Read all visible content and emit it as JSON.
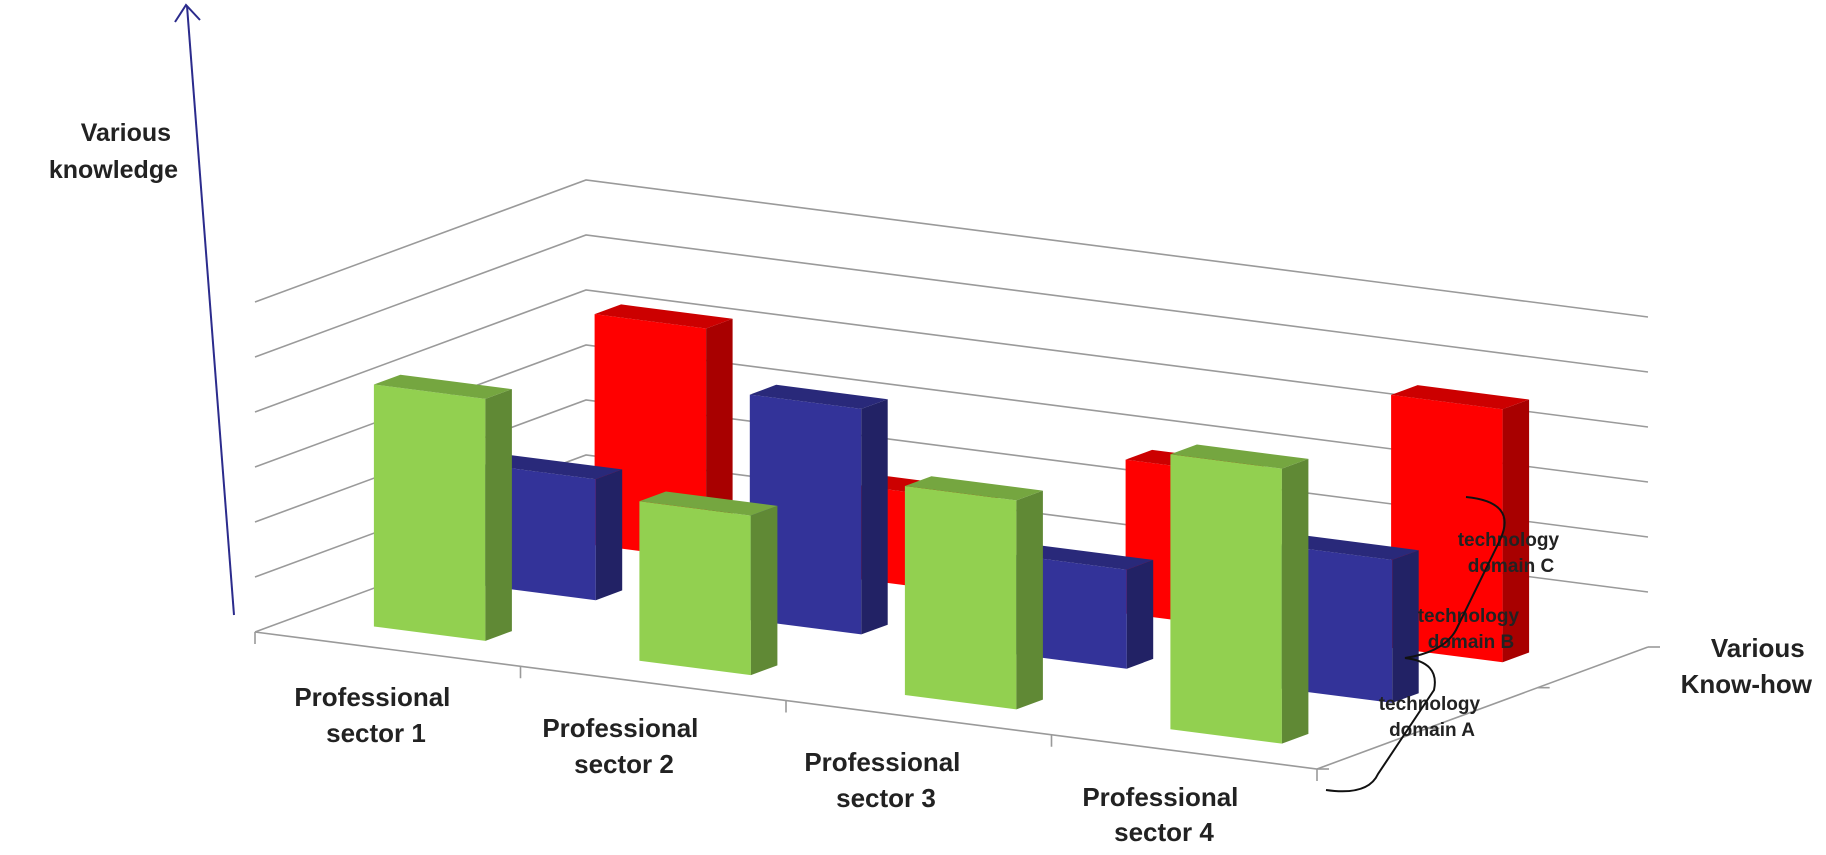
{
  "chart_data": {
    "type": "bar",
    "variant": "3d-column",
    "categories": [
      "Professional sector 1",
      "Professional sector 2",
      "Professional sector 3",
      "Professional sector 4"
    ],
    "series": [
      {
        "name": "technology domain A",
        "values": [
          4.4,
          2.9,
          3.8,
          5.0
        ],
        "color": "#92D050"
      },
      {
        "name": "technology domain B",
        "values": [
          2.2,
          4.1,
          1.8,
          2.6
        ],
        "color": "#333399"
      },
      {
        "name": "technology domain C",
        "values": [
          4.2,
          1.7,
          2.8,
          4.6
        ],
        "color": "#FF0000"
      }
    ],
    "ylim": [
      0,
      6
    ],
    "grid": true,
    "ylabel": "Various knowledge",
    "zlabel": "Various Know-how"
  },
  "labels": {
    "y_axis_lines": [
      "Various",
      "knowledge"
    ],
    "depth_axis_lines": [
      "Various",
      "Know-how"
    ],
    "category_lines": [
      [
        "Professional",
        "sector 1"
      ],
      [
        "Professional",
        "sector 2"
      ],
      [
        "Professional",
        "sector 3"
      ],
      [
        "Professional",
        "sector 4"
      ]
    ],
    "series_lines": [
      [
        "technology",
        "domain A"
      ],
      [
        "technology",
        "domain B"
      ],
      [
        "technology",
        "domain C"
      ]
    ]
  }
}
